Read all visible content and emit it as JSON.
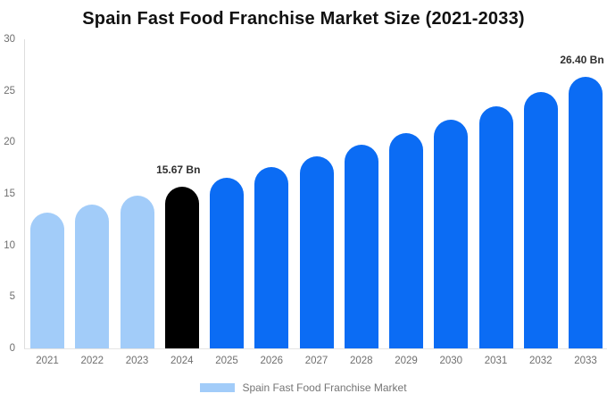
{
  "chart_data": {
    "type": "bar",
    "title": "Spain Fast Food Franchise Market Size (2021-2033)",
    "unit": "Bn",
    "categories": [
      "2021",
      "2022",
      "2023",
      "2024",
      "2025",
      "2026",
      "2027",
      "2028",
      "2029",
      "2030",
      "2031",
      "2032",
      "2033"
    ],
    "values": [
      13.18,
      13.96,
      14.79,
      15.67,
      16.6,
      17.59,
      18.64,
      19.75,
      20.92,
      22.17,
      23.49,
      24.89,
      26.4
    ],
    "bar_colors": [
      "#a2ccf9",
      "#a2ccf9",
      "#a2ccf9",
      "#000000",
      "#0b6cf4",
      "#0b6cf4",
      "#0b6cf4",
      "#0b6cf4",
      "#0b6cf4",
      "#0b6cf4",
      "#0b6cf4",
      "#0b6cf4",
      "#0b6cf4"
    ],
    "annotations": [
      {
        "category": "2024",
        "text": "15.67 Bn"
      },
      {
        "category": "2033",
        "text": "26.40 Bn"
      }
    ],
    "xlabel": "",
    "ylabel": "",
    "ylim": [
      0,
      30
    ],
    "yticks": [
      0,
      5,
      10,
      15,
      20,
      25,
      30
    ],
    "grid": false,
    "legend_position": "bottom"
  },
  "legend": {
    "label": "Spain Fast Food Franchise Market",
    "swatch_color": "#a2ccf9"
  }
}
